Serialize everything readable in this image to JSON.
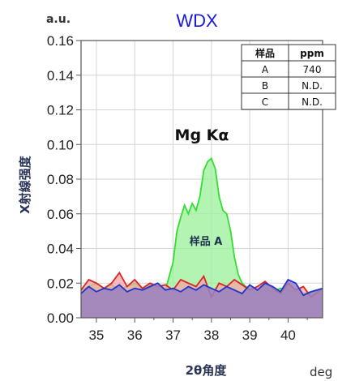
{
  "chart_data": {
    "type": "area",
    "title": "WDX",
    "y_unit": "a.u.",
    "ylabel": "X射線强度",
    "xlabel": "2θ角度",
    "x_unit": "deg",
    "xlim": [
      34.6,
      40.9
    ],
    "ylim": [
      0,
      0.16
    ],
    "x_ticks": [
      "35",
      "36",
      "37",
      "38",
      "39",
      "40"
    ],
    "y_ticks": [
      "0.00",
      "0.02",
      "0.04",
      "0.06",
      "0.08",
      "0.10",
      "0.12",
      "0.14",
      "0.16"
    ],
    "grid": true,
    "annotations": [
      "Mg Kα",
      "样品 A"
    ],
    "table": {
      "headers": [
        "样品",
        "ppm"
      ],
      "rows": [
        [
          "A",
          "740"
        ],
        [
          "B",
          "N.D."
        ],
        [
          "C",
          "N.D."
        ]
      ]
    },
    "series": [
      {
        "color": "#33dd33",
        "fill": "#99f099",
        "x": [
          34.6,
          34.8,
          35.0,
          35.2,
          35.4,
          35.6,
          35.8,
          36.0,
          36.2,
          36.4,
          36.6,
          36.8,
          37.0,
          37.1,
          37.2,
          37.3,
          37.4,
          37.5,
          37.6,
          37.7,
          37.8,
          37.9,
          38.0,
          38.1,
          38.2,
          38.3,
          38.4,
          38.5,
          38.6,
          38.7,
          38.8,
          39.0,
          39.2,
          39.4,
          39.6,
          39.8,
          40.0,
          40.2,
          40.4,
          40.6,
          40.9
        ],
        "y": [
          0.016,
          0.018,
          0.02,
          0.017,
          0.019,
          0.016,
          0.018,
          0.02,
          0.017,
          0.019,
          0.017,
          0.016,
          0.032,
          0.05,
          0.058,
          0.065,
          0.06,
          0.066,
          0.062,
          0.07,
          0.085,
          0.09,
          0.092,
          0.086,
          0.07,
          0.062,
          0.06,
          0.05,
          0.035,
          0.025,
          0.02,
          0.016,
          0.014,
          0.016,
          0.015,
          0.017,
          0.016,
          0.015,
          0.014,
          0.015,
          0.016
        ]
      },
      {
        "color": "#dd2222",
        "fill": "#f5a5a5",
        "x": [
          34.6,
          34.8,
          35.0,
          35.2,
          35.4,
          35.6,
          35.8,
          36.0,
          36.2,
          36.4,
          36.6,
          36.8,
          37.0,
          37.2,
          37.4,
          37.6,
          37.8,
          38.0,
          38.2,
          38.4,
          38.6,
          38.8,
          39.0,
          39.2,
          39.4,
          39.6,
          39.8,
          40.0,
          40.2,
          40.4,
          40.6,
          40.9
        ],
        "y": [
          0.016,
          0.022,
          0.02,
          0.017,
          0.02,
          0.026,
          0.018,
          0.022,
          0.017,
          0.02,
          0.018,
          0.019,
          0.016,
          0.022,
          0.02,
          0.018,
          0.024,
          0.012,
          0.02,
          0.018,
          0.022,
          0.019,
          0.016,
          0.018,
          0.021,
          0.017,
          0.014,
          0.02,
          0.016,
          0.018,
          0.012,
          0.017
        ]
      },
      {
        "color": "#2233cc",
        "fill": "#9a80c0",
        "x": [
          34.6,
          34.8,
          35.0,
          35.2,
          35.4,
          35.6,
          35.8,
          36.0,
          36.2,
          36.4,
          36.6,
          36.8,
          37.0,
          37.2,
          37.4,
          37.6,
          37.8,
          38.0,
          38.2,
          38.4,
          38.6,
          38.8,
          39.0,
          39.2,
          39.4,
          39.6,
          39.8,
          40.0,
          40.2,
          40.4,
          40.6,
          40.9
        ],
        "y": [
          0.014,
          0.018,
          0.015,
          0.017,
          0.016,
          0.019,
          0.015,
          0.017,
          0.016,
          0.018,
          0.02,
          0.016,
          0.017,
          0.015,
          0.018,
          0.016,
          0.019,
          0.017,
          0.015,
          0.018,
          0.016,
          0.014,
          0.019,
          0.016,
          0.02,
          0.018,
          0.015,
          0.022,
          0.02,
          0.013,
          0.015,
          0.017
        ]
      }
    ]
  }
}
